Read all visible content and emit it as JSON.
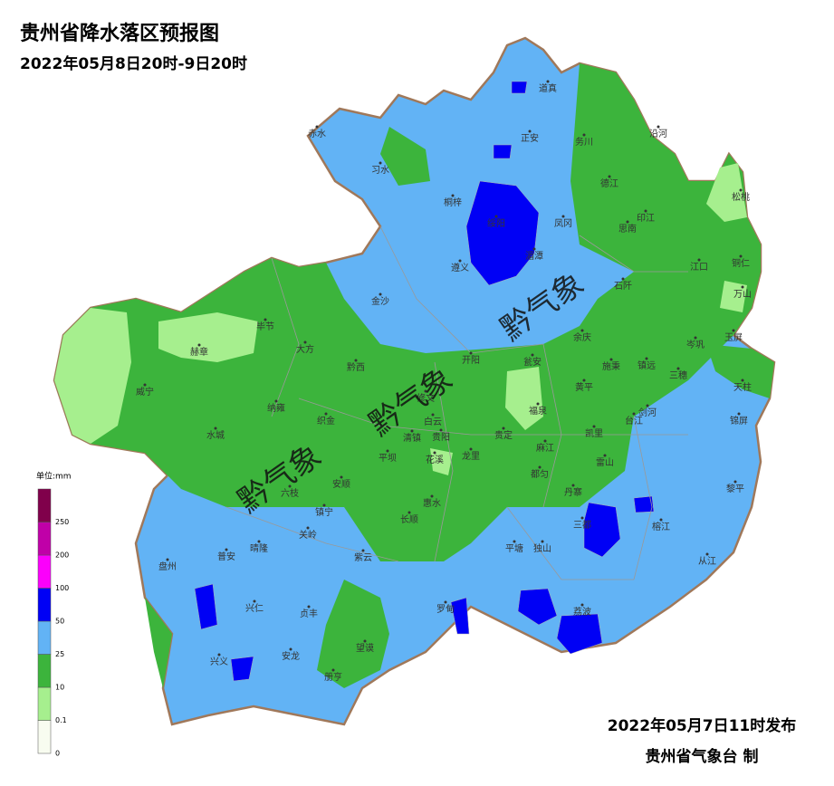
{
  "header": {
    "title": "贵州省降水落区预报图",
    "subtitle": "2022年05月8日20时-9日20时"
  },
  "legend": {
    "unit": "单位:mm",
    "ticks": [
      0,
      0.1,
      10,
      25,
      50,
      100,
      200,
      250
    ],
    "colors": [
      "#f8fcf0",
      "#a6ef8e",
      "#3cb43c",
      "#62b3f5",
      "#0000f5",
      "#fb00fb",
      "#c000a8",
      "#80004b"
    ]
  },
  "places": [
    "道真",
    "赤水",
    "正安",
    "务川",
    "沿河",
    "习水",
    "桐梓",
    "德江",
    "松桃",
    "绥阳",
    "凤冈",
    "印江",
    "思南",
    "湄潭",
    "遵义",
    "江口",
    "铜仁",
    "石阡",
    "万山",
    "金沙",
    "毕节",
    "大方",
    "余庆",
    "玉屏",
    "岑巩",
    "赫章",
    "黔西",
    "开阳",
    "瓮安",
    "施秉",
    "镇远",
    "三穗",
    "天柱",
    "威宁",
    "黄平",
    "修文",
    "纳雍",
    "剑河",
    "福泉",
    "台江",
    "锦屏",
    "织金",
    "白云",
    "水城",
    "清镇",
    "贵阳",
    "贵定",
    "凯里",
    "麻江",
    "龙里",
    "平坝",
    "花溪",
    "雷山",
    "都匀",
    "安顺",
    "六枝",
    "黎平",
    "丹寨",
    "惠水",
    "镇宁",
    "长顺",
    "三都",
    "榕江",
    "关岭",
    "普安",
    "晴隆",
    "平塘",
    "独山",
    "紫云",
    "从江",
    "盘州",
    "罗甸",
    "荔波",
    "兴仁",
    "贞丰",
    "望谟",
    "兴义",
    "安龙",
    "册亨"
  ],
  "watermark": "黔气象",
  "footer": {
    "issued": "2022年05月7日11时发布",
    "issuer": "贵州省气象台 制"
  }
}
